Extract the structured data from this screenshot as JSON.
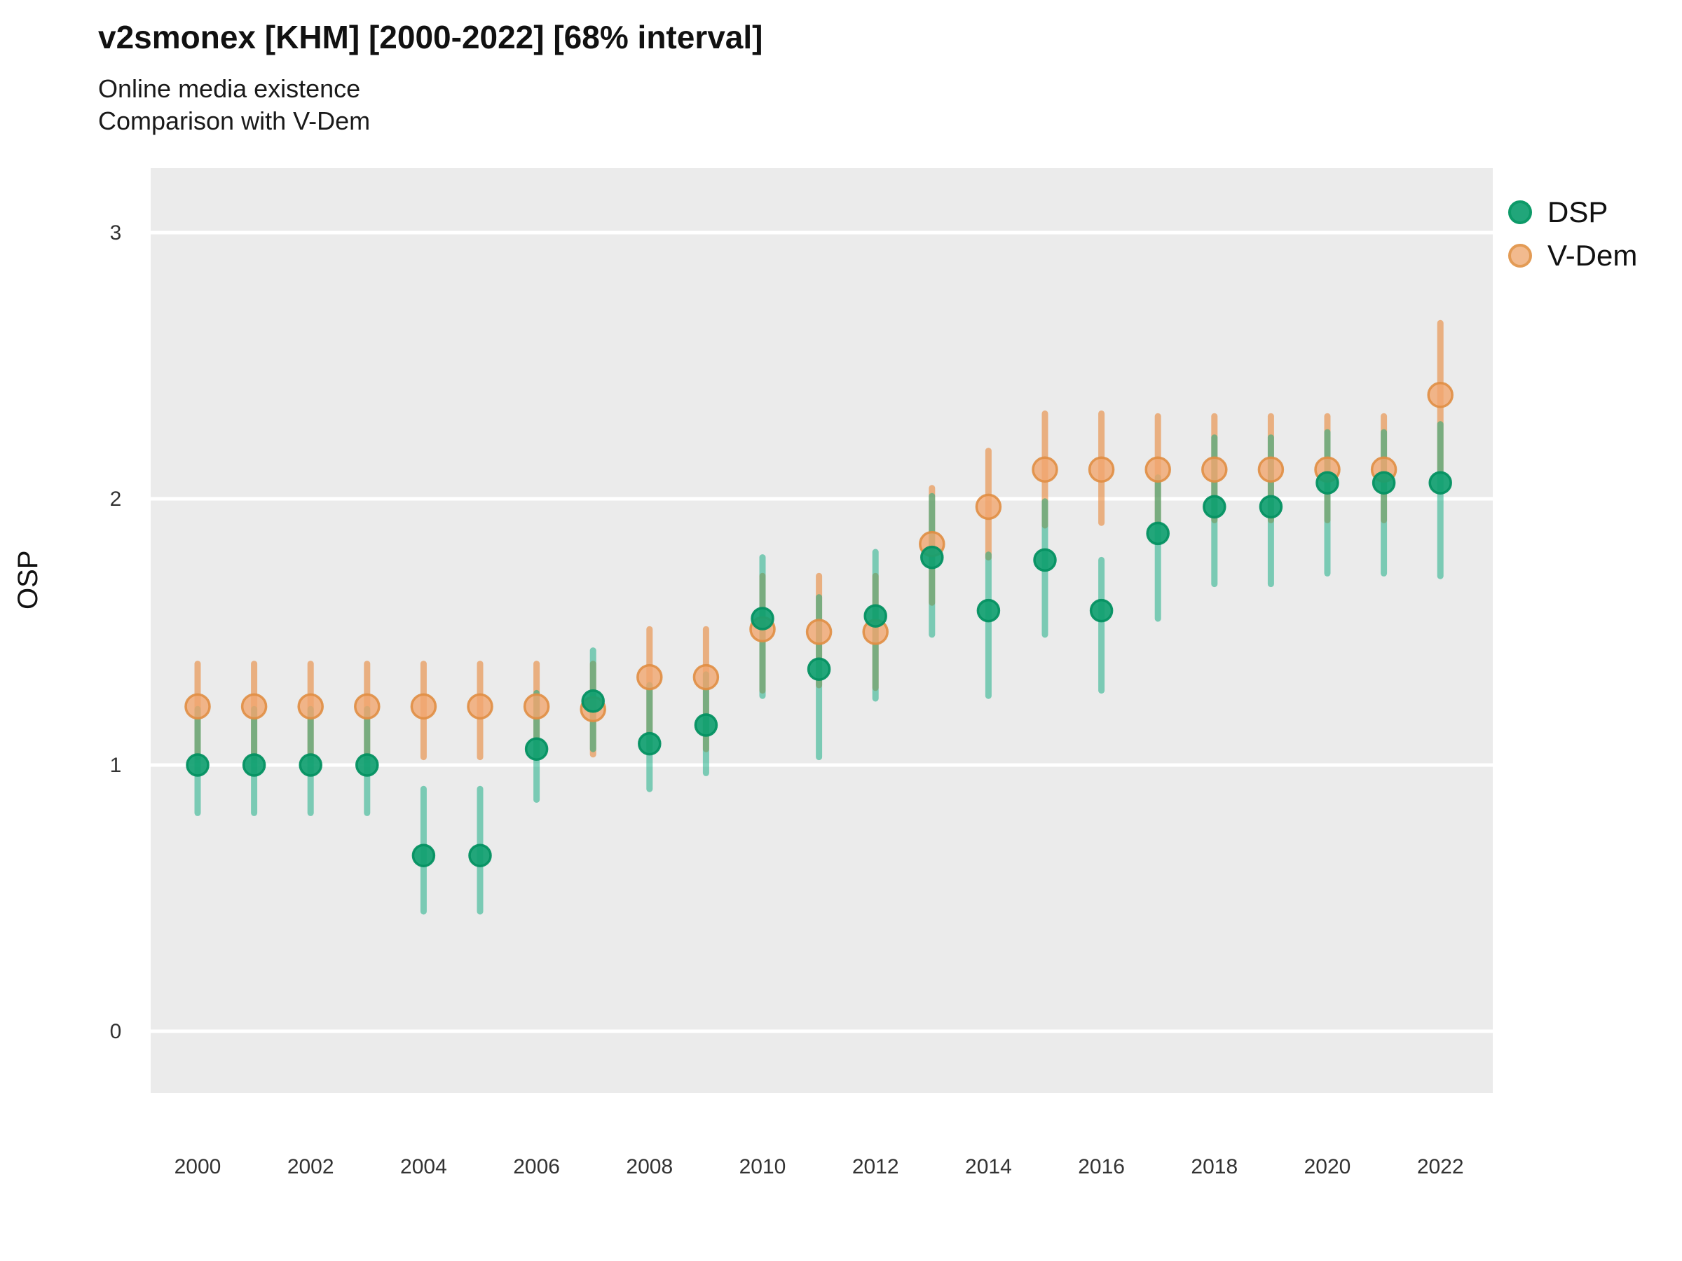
{
  "title": "v2smonex [KHM] [2000-2022] [68% interval]",
  "subtitle1": "Online media existence",
  "subtitle2": "Comparison with V-Dem",
  "y_axis_title": "OSP",
  "legend": {
    "items": [
      {
        "label": "DSP",
        "fill": "#21a67a",
        "border": "#0d9a68"
      },
      {
        "label": "V-Dem",
        "fill": "#f2ba8e",
        "border": "#e39b55"
      }
    ]
  },
  "colors": {
    "panel_bg": "#ebebeb",
    "gridline": "#ffffff",
    "tick_text": "#333333",
    "dsp_point_fill": "rgba(16,160,112,0.92)",
    "dsp_point_stroke": "rgba(5,145,98,0.95)",
    "dsp_interval": "rgba(10,170,125,0.5)",
    "vdem_point_fill": "rgba(241,166,111,0.8)",
    "vdem_point_stroke": "rgba(224,142,68,0.9)",
    "vdem_interval": "rgba(232,125,40,0.55)"
  },
  "chart_data": {
    "type": "scatter",
    "title": "v2smonex [KHM] [2000-2022] [68% interval]",
    "subtitle": [
      "Online media existence",
      "Comparison with V-Dem"
    ],
    "xlabel": "",
    "ylabel": "OSP",
    "interval_level": "68%",
    "legend_position": "right",
    "grid": true,
    "x": [
      2000,
      2001,
      2002,
      2003,
      2004,
      2005,
      2006,
      2007,
      2008,
      2009,
      2010,
      2011,
      2012,
      2013,
      2014,
      2015,
      2016,
      2017,
      2018,
      2019,
      2020,
      2021,
      2022
    ],
    "xticks": [
      2000,
      2002,
      2004,
      2006,
      2008,
      2010,
      2012,
      2014,
      2016,
      2018,
      2020,
      2022
    ],
    "yticks": [
      0,
      1,
      2,
      3
    ],
    "ylim": [
      -0.24,
      3.24
    ],
    "series": [
      {
        "name": "DSP",
        "values": [
          1.0,
          1.0,
          1.0,
          1.0,
          0.66,
          0.66,
          1.06,
          1.24,
          1.08,
          1.15,
          1.55,
          1.36,
          1.56,
          1.78,
          1.58,
          1.77,
          1.58,
          1.87,
          1.97,
          1.97,
          2.06,
          2.06,
          2.06
        ],
        "lo": [
          0.82,
          0.82,
          0.82,
          0.82,
          0.45,
          0.45,
          0.87,
          1.06,
          0.91,
          0.97,
          1.26,
          1.03,
          1.25,
          1.49,
          1.26,
          1.49,
          1.28,
          1.55,
          1.68,
          1.68,
          1.72,
          1.72,
          1.71
        ],
        "hi": [
          1.21,
          1.21,
          1.21,
          1.21,
          0.91,
          0.91,
          1.27,
          1.43,
          1.3,
          1.34,
          1.78,
          1.63,
          1.8,
          2.01,
          1.79,
          1.99,
          1.77,
          2.08,
          2.23,
          2.23,
          2.25,
          2.25,
          2.28
        ]
      },
      {
        "name": "V-Dem",
        "values": [
          1.22,
          1.22,
          1.22,
          1.22,
          1.22,
          1.22,
          1.22,
          1.21,
          1.33,
          1.33,
          1.51,
          1.5,
          1.5,
          1.83,
          1.97,
          2.11,
          2.11,
          2.11,
          2.11,
          2.11,
          2.11,
          2.11,
          2.39
        ],
        "lo": [
          1.03,
          1.03,
          1.03,
          1.03,
          1.03,
          1.03,
          1.03,
          1.04,
          1.06,
          1.06,
          1.28,
          1.3,
          1.29,
          1.61,
          1.78,
          1.9,
          1.91,
          1.91,
          1.92,
          1.92,
          1.92,
          1.92,
          2.1
        ],
        "hi": [
          1.38,
          1.38,
          1.38,
          1.38,
          1.38,
          1.38,
          1.38,
          1.38,
          1.51,
          1.51,
          1.71,
          1.71,
          1.71,
          2.04,
          2.18,
          2.32,
          2.32,
          2.31,
          2.31,
          2.31,
          2.31,
          2.31,
          2.66
        ]
      }
    ]
  }
}
